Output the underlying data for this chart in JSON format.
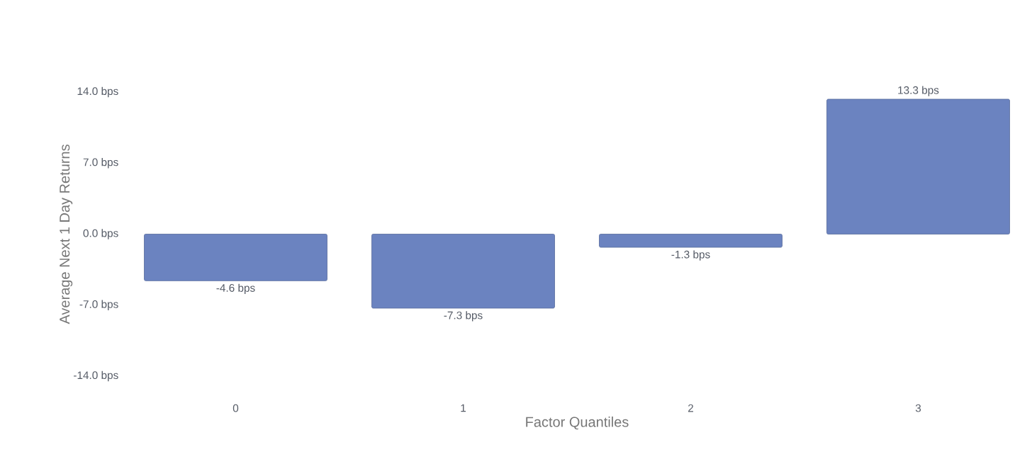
{
  "chart_data": {
    "type": "bar",
    "xlabel": "Factor Quantiles",
    "ylabel": "Average Next 1 Day Returns",
    "categories": [
      "0",
      "1",
      "2",
      "3"
    ],
    "values": [
      -4.6,
      -7.3,
      -1.3,
      13.3
    ],
    "value_labels": [
      "-4.6 bps",
      "-7.3 bps",
      "-1.3 bps",
      "13.3 bps"
    ],
    "color": "#6b83c0",
    "ylim": [
      -14,
      14
    ],
    "yticks": [
      {
        "value": -14,
        "label": "-14.0 bps"
      },
      {
        "value": -7,
        "label": "-7.0 bps"
      },
      {
        "value": 0,
        "label": "0.0 bps"
      },
      {
        "value": 7,
        "label": "7.0 bps"
      },
      {
        "value": 14,
        "label": "14.0 bps"
      }
    ],
    "grid": false
  }
}
